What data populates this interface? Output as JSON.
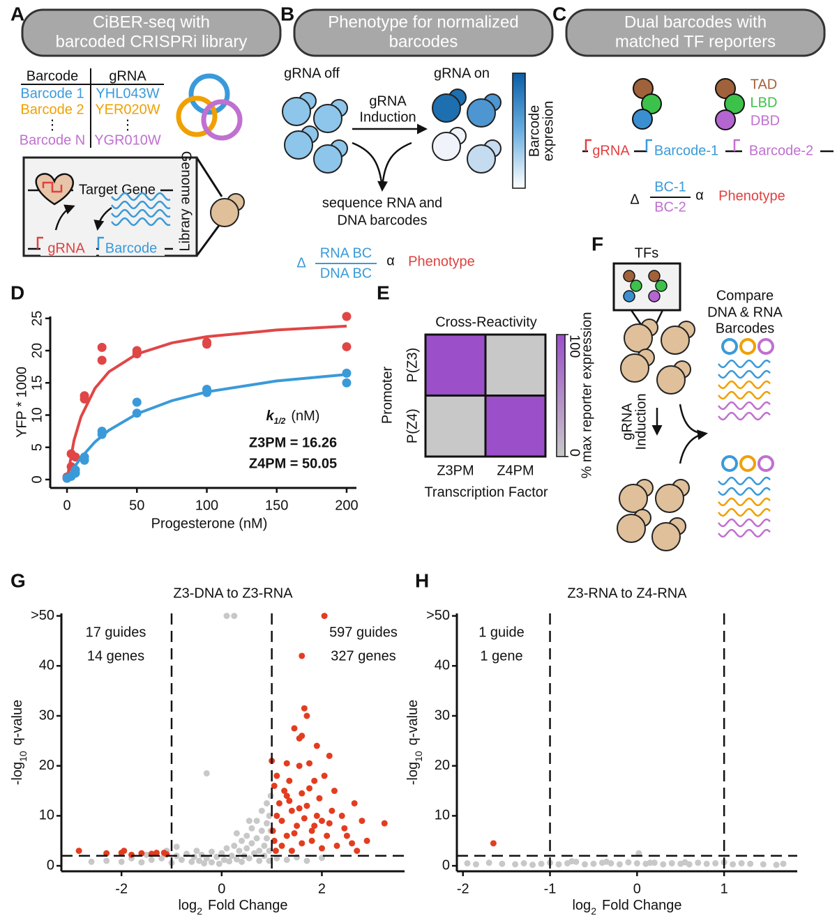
{
  "panel_labels": [
    "A",
    "B",
    "C",
    "D",
    "E",
    "F",
    "G",
    "H"
  ],
  "panel_a": {
    "header": [
      "CiBER-seq with",
      "barcoded CRISPRi library"
    ],
    "table": {
      "headers": [
        "Barcode",
        "gRNA"
      ],
      "rows": [
        [
          "Barcode 1",
          "YHL043W"
        ],
        [
          "Barcode 2",
          "YER020W"
        ],
        [
          "⋮",
          "⋮"
        ],
        [
          "Barcode N",
          "YGR010W"
        ]
      ]
    },
    "target_gene": "Target Gene",
    "genome": "Genome",
    "library": "Library",
    "grna": "gRNA",
    "barcode": "Barcode"
  },
  "panel_b": {
    "header": [
      "Phenotype for normalized",
      "barcodes"
    ],
    "grna_off": "gRNA off",
    "grna_on": "gRNA on",
    "induction": [
      "gRNA",
      "Induction"
    ],
    "colorbar": [
      "Barcode",
      "expresion"
    ],
    "sequence": [
      "sequence RNA and",
      "DNA barcodes"
    ],
    "delta": "Δ",
    "numerator": "RNA BC",
    "denominator": "DNA BC",
    "alpha": "α",
    "phenotype": "Phenotype"
  },
  "panel_c": {
    "header": [
      "Dual barcodes with",
      "matched TF reporters"
    ],
    "domains": [
      "TAD",
      "LBD",
      "DBD"
    ],
    "grna": "gRNA",
    "barcode1": "Barcode-1",
    "barcode2": "Barcode-2",
    "delta": "Δ",
    "numerator": "BC-1",
    "denominator": "BC-2",
    "alpha": "α",
    "phenotype": "Phenotype"
  },
  "panel_f": {
    "tfs": "TFs",
    "compare": [
      "Compare",
      "DNA & RNA",
      "Barcodes"
    ],
    "induction": [
      "gRNA",
      "Induction"
    ]
  },
  "chart_data": [
    {
      "type": "scatter",
      "x_label": "Progesterone (nM)",
      "y_label": "YFP * 1000",
      "xlim": [
        -12,
        207
      ],
      "xticks": [
        0,
        50,
        100,
        150,
        200
      ],
      "ylim": [
        -1.3,
        25.3
      ],
      "yticks": [
        0,
        5,
        10,
        15,
        20,
        25
      ],
      "annotation": {
        "k": "k",
        "sub": "1/2",
        "unit": "(nM)"
      },
      "series": [
        {
          "name": "Z3PM",
          "label": "Z3PM = 16.26",
          "color": "#e04646",
          "x": [
            0,
            0,
            3,
            3,
            6,
            12.5,
            12.5,
            25,
            25,
            50,
            50,
            100,
            100,
            200,
            200
          ],
          "values": [
            0.2,
            0.4,
            2,
            4,
            3.5,
            12.5,
            13,
            20.5,
            18.5,
            20,
            19.5,
            21,
            21.3,
            25.3,
            20.6
          ],
          "fit_x": [
            0,
            5,
            10,
            20,
            30,
            50,
            75,
            100,
            150,
            200
          ],
          "fit_values": [
            0,
            6.07,
            9.73,
            14.15,
            16.72,
            19.47,
            21.2,
            22.16,
            23.2,
            23.8
          ]
        },
        {
          "name": "Z4PM",
          "label": "Z4PM = 50.05",
          "color": "#3a9ad9",
          "x": [
            0,
            3,
            6,
            6,
            12.5,
            12.5,
            25,
            25,
            50,
            50,
            100,
            100,
            200,
            200
          ],
          "values": [
            0.2,
            0.5,
            1,
            1.5,
            3,
            3.5,
            7,
            7.5,
            12,
            10.3,
            13.5,
            14,
            16.5,
            15
          ],
          "fit_x": [
            0,
            5,
            10,
            20,
            30,
            50,
            75,
            100,
            150,
            200
          ],
          "fit_values": [
            0,
            1.85,
            3.4,
            5.83,
            7.65,
            10.2,
            12.23,
            13.6,
            15.3,
            16.3
          ]
        }
      ]
    },
    {
      "type": "heatmap",
      "title": "Cross-Reactivity",
      "x_label": "Transcription Factor",
      "y_label": "Promoter",
      "x_categories": [
        "Z3PM",
        "Z4PM"
      ],
      "y_categories": [
        "P(Z3)",
        "P(Z4)"
      ],
      "values": [
        [
          100,
          0
        ],
        [
          0,
          100
        ]
      ],
      "clim": [
        0,
        100
      ],
      "cticks": [
        0,
        100
      ],
      "colorbar_label": "% max reporter expression",
      "colors": {
        "low": "#c8c8c8",
        "high": "#9b4fc8"
      }
    },
    {
      "type": "volcano",
      "title": "Z3-DNA to Z3-RNA",
      "x_label": {
        "main": "log",
        "sub": "2",
        "rest": "Fold Change"
      },
      "y_label": {
        "main": "-log",
        "sub": "10",
        "rest": "q-value"
      },
      "xlim": [
        -3.2,
        3.65
      ],
      "xticks": [
        -2,
        0,
        2
      ],
      "ylim": [
        -1.1,
        50.5
      ],
      "yticks": [
        0,
        10,
        20,
        30,
        40,
        {
          "value": 50,
          "label": ">50"
        }
      ],
      "vlines": [
        -1,
        1
      ],
      "hline": 2,
      "left_labels": [
        "17 guides",
        "14 genes"
      ],
      "right_labels": [
        "597 guides",
        "327 genes"
      ],
      "series": [
        {
          "color": "#c8c8c8",
          "x": [
            -2.3,
            -2.0,
            -1.8,
            -1.6,
            -1.4,
            -1.2,
            -1.1,
            -1.0,
            -0.9,
            -0.9,
            -0.8,
            -0.7,
            -0.6,
            -0.55,
            -0.5,
            -0.45,
            -0.4,
            -0.35,
            -0.3,
            -0.3,
            -0.2,
            -0.2,
            -0.1,
            -0.05,
            0,
            0.05,
            0.1,
            0.1,
            0.15,
            0.2,
            0.25,
            0.25,
            0.3,
            0.35,
            0.4,
            0.4,
            0.45,
            0.5,
            0.5,
            0.55,
            0.6,
            0.6,
            0.65,
            0.7,
            0.7,
            0.75,
            0.75,
            0.8,
            0.8,
            0.85,
            0.85,
            0.9,
            0.9,
            0.9,
            0.95,
            0.95,
            0.95,
            0.98,
            1.1,
            1.3,
            1.5,
            1.7,
            2.0,
            -1.5,
            -2.6,
            0.3,
            0.55,
            0.98
          ],
          "values": [
            1,
            0.8,
            1.5,
            0.7,
            1.2,
            1.5,
            3,
            0.6,
            2,
            3.8,
            1.2,
            2.4,
            0.8,
            1.8,
            3,
            1,
            2.2,
            0.5,
            18.5,
            1.5,
            2.8,
            0.7,
            1.8,
            0.4,
            2.5,
            1.2,
            50,
            3.5,
            0.9,
            2,
            50,
            4,
            1.3,
            3,
            5,
            0.8,
            2,
            6,
            3.5,
            1.5,
            7.5,
            4.5,
            2.5,
            9,
            5.5,
            3,
            1,
            11,
            7,
            4,
            2,
            12.5,
            8.5,
            5.5,
            10,
            3,
            1,
            7,
            1.5,
            1.2,
            1.7,
            1,
            1.6,
            2.2,
            0.8,
            6.5,
            9,
            14
          ]
        },
        {
          "color": "#e33d1f",
          "x": [
            -2.85,
            -2.3,
            -2.0,
            -1.95,
            -1.8,
            -1.6,
            -1.4,
            -1.3,
            -1.15,
            -1.1,
            1.65,
            1.7,
            1.45,
            1.6,
            1.9,
            1.55,
            1.0,
            1.3,
            1.55,
            1.75,
            2.15,
            1.85,
            1.05,
            1.3,
            1.6,
            2.25,
            2.65,
            2.05,
            2.4,
            3.25,
            2.8,
            2.5,
            2.6,
            1.1,
            1.2,
            1.4,
            1.5,
            1.7,
            1.8,
            1.9,
            2.0,
            2.1,
            2.2,
            1.05,
            1.2,
            1.3,
            1.4,
            1.6,
            1.8,
            2.0,
            2.3,
            1.15,
            1.35,
            1.65,
            1.95,
            1.6,
            2.05,
            1.02,
            1.08,
            1.25,
            1.45,
            1.75,
            2.45,
            2.9,
            1.1,
            1.35,
            1.55,
            1.85,
            2.15,
            2.7
          ],
          "values": [
            3,
            2.5,
            2.6,
            3,
            2.2,
            2.5,
            2.4,
            2.6,
            2.6,
            2.3,
            31.5,
            30,
            27.5,
            26,
            24,
            25.5,
            21,
            20.5,
            20,
            20.5,
            22,
            17,
            16,
            14,
            14.5,
            15,
            12.5,
            18,
            10,
            8.5,
            9,
            6,
            4.5,
            10,
            9,
            11,
            8,
            12,
            7,
            10,
            9,
            6,
            11,
            5,
            4,
            6,
            3,
            4.5,
            5,
            3.5,
            4,
            12.5,
            13,
            9.5,
            13.5,
            42,
            50,
            7,
            3,
            15,
            6.5,
            15.5,
            7.5,
            5,
            18,
            17,
            11.5,
            8,
            8.5,
            3
          ]
        }
      ]
    },
    {
      "type": "volcano",
      "title": "Z3-RNA to Z4-RNA",
      "x_label": {
        "main": "log",
        "sub": "2",
        "rest": "Fold Change"
      },
      "y_label": {
        "main": "-log",
        "sub": "10",
        "rest": "q-value"
      },
      "xlim": [
        -2.07,
        1.84
      ],
      "xticks": [
        -2,
        -1,
        0,
        1
      ],
      "ylim": [
        -1.1,
        50.5
      ],
      "yticks": [
        0,
        10,
        20,
        30,
        40,
        {
          "value": 50,
          "label": ">50"
        }
      ],
      "vlines": [
        -1,
        1
      ],
      "hline": 2,
      "left_labels": [
        "1 guide",
        "1 gene"
      ],
      "series": [
        {
          "color": "#c8c8c8",
          "x": [
            -1.95,
            -1.85,
            -1.7,
            -1.55,
            -1.4,
            -1.3,
            -1.2,
            -1.1,
            -1.0,
            -0.9,
            -0.8,
            -0.7,
            -0.6,
            -0.5,
            -0.4,
            -0.3,
            -0.2,
            -0.1,
            0,
            0.02,
            0.1,
            0.2,
            0.3,
            0.4,
            0.5,
            0.6,
            0.7,
            0.8,
            0.9,
            1.0,
            1.1,
            1.2,
            1.3,
            1.45,
            1.6,
            1.68,
            -0.75,
            -0.35,
            0.15,
            0.55
          ],
          "values": [
            0.5,
            0.3,
            0.6,
            0.4,
            0.3,
            0.5,
            0.2,
            0.4,
            0.6,
            0.3,
            0.5,
            0.8,
            0.3,
            0.4,
            0.6,
            0.5,
            0.3,
            0.7,
            0.5,
            2.5,
            0.4,
            0.6,
            0.3,
            0.5,
            0.4,
            0.3,
            0.6,
            0.4,
            0.5,
            0.7,
            0.3,
            0.5,
            0.4,
            0.3,
            0.2,
            0.4,
            0.9,
            0.8,
            0.6,
            0.7
          ]
        },
        {
          "color": "#e33d1f",
          "x": [
            -1.65
          ],
          "values": [
            4.5
          ]
        }
      ]
    }
  ]
}
